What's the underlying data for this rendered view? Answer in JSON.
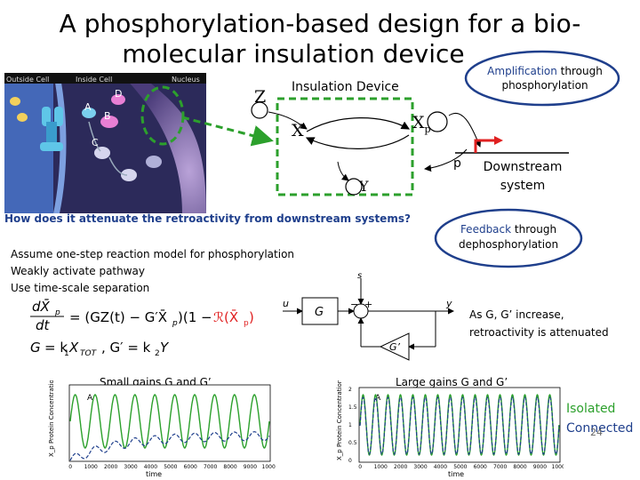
{
  "slide": {
    "title_line1": "A phosphorylation-based design for a bio-",
    "title_line2": "molecular insulation device",
    "page_number": "24"
  },
  "cell_image": {
    "label_outside": "Outside Cell",
    "label_inside": "Inside Cell",
    "label_nucleus": "Nucleus",
    "letters": [
      "A",
      "B",
      "D",
      "C"
    ]
  },
  "insulation": {
    "label": "Insulation Device",
    "symbol_z": "Z",
    "symbol_x": "X",
    "symbol_xp": "X",
    "symbol_xp_sub": "p",
    "symbol_y": "Y"
  },
  "amplification": {
    "label_line1": "Amplification",
    "label_line1b": " through",
    "label_line2": "phosphorylation"
  },
  "downstream": {
    "promoter": "p",
    "label_line1": "Downstream",
    "label_line2": "system"
  },
  "feedback": {
    "label_line1a": "Feedback",
    "label_line1b": " through",
    "label_line2": "dephosphorylation"
  },
  "question": "How does it attenuate the retroactivity from downstream systems?",
  "assumptions": [
    "Assume one-step reaction model for phosphorylation",
    "Weakly activate pathway",
    "Use time-scale separation"
  ],
  "block_diagram": {
    "s": "s",
    "u": "u",
    "y": "y",
    "G": "G",
    "Gp": "G’",
    "minus": "−",
    "plus": "+"
  },
  "attenuation_note": {
    "line1": "As G, G’ increase,",
    "line2": "retroactivity is attenuated"
  },
  "plot_left": {
    "title": "Small gains G and G’",
    "ylabel": "X_p Protein Concentration",
    "xlabel": "time",
    "label_a": "A",
    "xticks": [
      "0",
      "1000",
      "2000",
      "3000",
      "4000",
      "5000",
      "6000",
      "7000",
      "8000",
      "9000",
      "10000"
    ]
  },
  "plot_right": {
    "title": "Large gains G and G’",
    "ylabel": "X_p Protein Concentration",
    "xlabel": "time",
    "label_a": "A",
    "xticks": [
      "0",
      "1000",
      "2000",
      "3000",
      "4000",
      "5000",
      "6000",
      "7000",
      "8000",
      "9000",
      "10000"
    ],
    "yticks": [
      "2",
      "1.5",
      "1",
      "0.5",
      "0"
    ]
  },
  "legend": {
    "isolated": "Isolated",
    "connected": "Connected"
  },
  "colors": {
    "isolated": "#2ca02c",
    "connected": "#1f3f8c",
    "insulation_box": "#2ca02c",
    "promoter": "#e02020",
    "amplification_circle": "#1f3f8c"
  }
}
